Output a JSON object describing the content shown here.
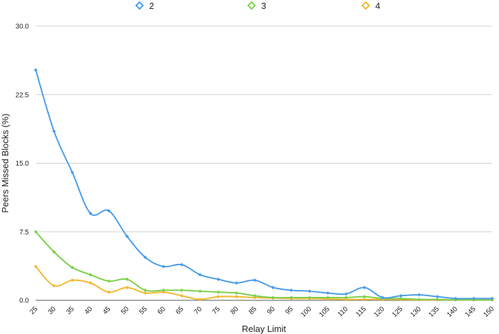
{
  "chart_data": {
    "type": "line",
    "xlabel": "Relay Limit",
    "ylabel": "Peers Missed Blocks (%)",
    "ylim": [
      0,
      30
    ],
    "yticks": [
      0,
      7.5,
      15,
      22.5,
      30
    ],
    "ytick_labels": [
      "0.0",
      "7.5",
      "15.0",
      "22.5",
      "30.0"
    ],
    "grid": true,
    "legend_position": "top",
    "x": [
      25,
      30,
      35,
      40,
      45,
      50,
      55,
      60,
      65,
      70,
      75,
      80,
      85,
      90,
      95,
      100,
      105,
      110,
      115,
      120,
      125,
      130,
      135,
      140,
      145,
      150
    ],
    "series": [
      {
        "name": "2",
        "color": "#4a9de8",
        "values": [
          25.2,
          18.5,
          14.0,
          9.5,
          9.8,
          7.0,
          4.7,
          3.7,
          3.9,
          2.8,
          2.3,
          1.9,
          2.2,
          1.4,
          1.1,
          1.0,
          0.8,
          0.7,
          1.4,
          0.3,
          0.5,
          0.6,
          0.4,
          0.2,
          0.2,
          0.2
        ]
      },
      {
        "name": "3",
        "color": "#7ccf4a",
        "values": [
          7.5,
          5.3,
          3.6,
          2.8,
          2.1,
          2.3,
          1.1,
          1.1,
          1.1,
          1.0,
          0.9,
          0.8,
          0.5,
          0.3,
          0.3,
          0.3,
          0.3,
          0.3,
          0.4,
          0.2,
          0.2,
          0.1,
          0.1,
          0.05,
          0.05,
          0.05
        ]
      },
      {
        "name": "4",
        "color": "#f2b833",
        "values": [
          3.7,
          1.6,
          2.2,
          1.9,
          0.9,
          1.4,
          0.8,
          0.9,
          0.5,
          0.1,
          0.4,
          0.4,
          0.3,
          0.25,
          0.2,
          0.2,
          0.15,
          0.1,
          0.1,
          0.1,
          0.1,
          0.05,
          0.05,
          0.05,
          0.05,
          0.05
        ]
      }
    ]
  }
}
